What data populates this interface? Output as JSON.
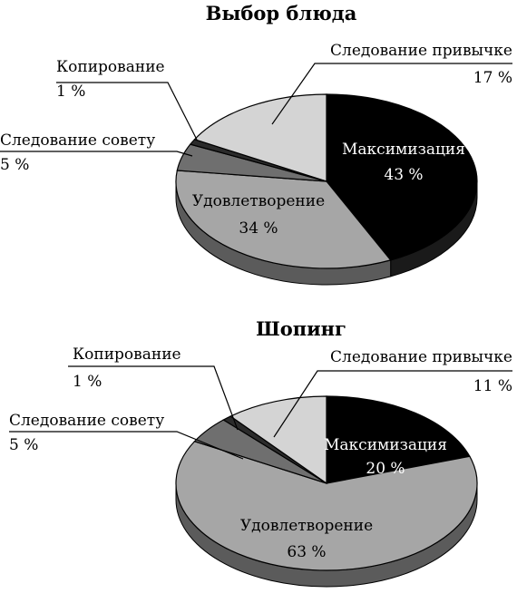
{
  "chart_data": [
    {
      "type": "pie",
      "title": "Выбор блюда",
      "slices": [
        {
          "label": "Максимизация",
          "value": 43,
          "value_label": "43 %",
          "color": "#000000"
        },
        {
          "label": "Удовлетворение",
          "value": 34,
          "value_label": "34 %",
          "color": "#a6a6a6"
        },
        {
          "label": "Следование совету",
          "value": 5,
          "value_label": "5 %",
          "color": "#6f6f6f"
        },
        {
          "label": "Копирование",
          "value": 1,
          "value_label": "1 %",
          "color": "#2b2b2b"
        },
        {
          "label": "Следование привычке",
          "value": 17,
          "value_label": "17 %",
          "color": "#d4d4d4"
        }
      ]
    },
    {
      "type": "pie",
      "title": "Шопинг",
      "slices": [
        {
          "label": "Максимизация",
          "value": 20,
          "value_label": "20 %",
          "color": "#000000"
        },
        {
          "label": "Удовлетворение",
          "value": 63,
          "value_label": "63 %",
          "color": "#a6a6a6"
        },
        {
          "label": "Следование совету",
          "value": 5,
          "value_label": "5 %",
          "color": "#6f6f6f"
        },
        {
          "label": "Копирование",
          "value": 1,
          "value_label": "1 %",
          "color": "#2b2b2b"
        },
        {
          "label": "Следование привычке",
          "value": 11,
          "value_label": "11 %",
          "color": "#d4d4d4"
        }
      ]
    }
  ]
}
